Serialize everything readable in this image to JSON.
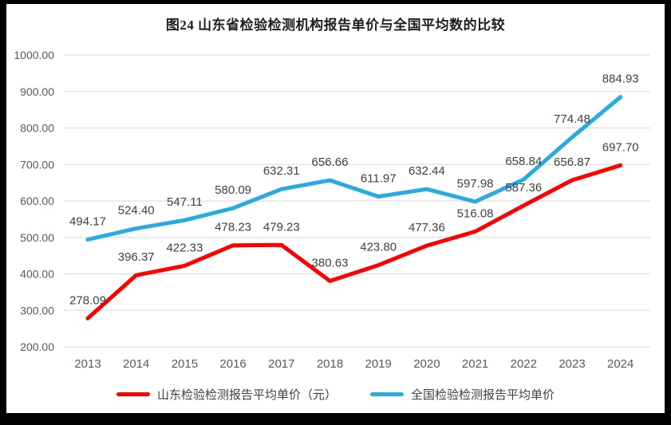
{
  "title": "图24  山东省检验检测机构报告单价与全国平均数的比较",
  "chart_data": {
    "type": "line",
    "title": "图24  山东省检验检测机构报告单价与全国平均数的比较",
    "categories": [
      "2013",
      "2014",
      "2015",
      "2016",
      "2017",
      "2018",
      "2019",
      "2020",
      "2021",
      "2022",
      "2023",
      "2024"
    ],
    "series": [
      {
        "name": "山东检验检测报告平均单价（元）",
        "color": "#fe0000",
        "values": [
          278.09,
          396.37,
          422.33,
          478.23,
          479.23,
          380.63,
          423.8,
          477.36,
          516.08,
          587.36,
          656.87,
          697.7
        ]
      },
      {
        "name": "全国检验检测报告平均单价",
        "color": "#29abe2",
        "values": [
          494.17,
          524.4,
          547.11,
          580.09,
          632.31,
          656.66,
          611.97,
          632.44,
          597.98,
          658.84,
          774.48,
          884.93
        ]
      }
    ],
    "ylim": [
      200,
      1000
    ],
    "ytick_step": 100,
    "ytick_labels": [
      "200.00",
      "300.00",
      "400.00",
      "500.00",
      "600.00",
      "700.00",
      "800.00",
      "900.00",
      "1000.00"
    ],
    "value_label_decimals": 2,
    "grid": true,
    "legend_position": "bottom",
    "colors": {
      "grid": "#d9d9d9",
      "axis_text": "#595959",
      "data_label": "#404040",
      "background": "#ffffff",
      "frame": "#000000"
    }
  }
}
